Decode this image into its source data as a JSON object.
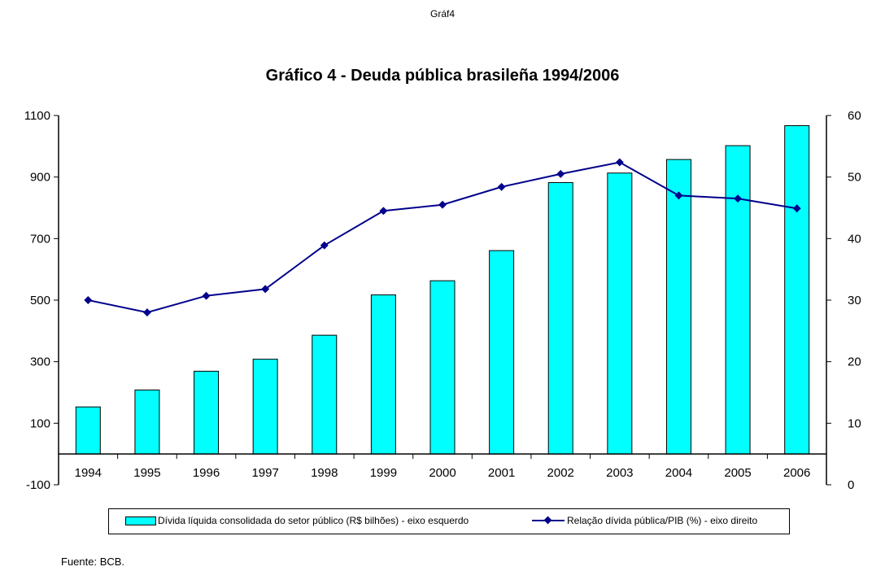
{
  "header": {
    "sheet_label": "Gráf4"
  },
  "chart_data": {
    "type": "bar",
    "title": "Gráfico 4 - Deuda pública brasileña 1994/2006",
    "categories": [
      "1994",
      "1995",
      "1996",
      "1997",
      "1998",
      "1999",
      "2000",
      "2001",
      "2002",
      "2003",
      "2004",
      "2005",
      "2006"
    ],
    "series": [
      {
        "name": "Dívida líquida consolidada do setor público (R$ bilhões) - eixo esquerdo",
        "type": "bar",
        "axis": "left",
        "color": "#00ffff",
        "values": [
          153,
          208,
          269,
          308,
          386,
          517,
          563,
          661,
          882,
          913,
          957,
          1002,
          1067
        ]
      },
      {
        "name": "Relação dívida pública/PIB (%) - eixo direito",
        "type": "line",
        "axis": "right",
        "color": "#00008b",
        "values": [
          30.0,
          28.0,
          30.7,
          31.8,
          38.9,
          44.5,
          45.5,
          48.4,
          50.5,
          52.4,
          47.0,
          46.5,
          44.9
        ]
      }
    ],
    "y_left": {
      "lim": [
        -100,
        1100
      ],
      "ticks": [
        "1100",
        "900",
        "700",
        "500",
        "300",
        "100",
        "-100"
      ]
    },
    "y_right": {
      "lim": [
        0,
        60
      ],
      "ticks": [
        "60",
        "50",
        "40",
        "30",
        "20",
        "10",
        "0"
      ]
    },
    "legend_position": "bottom",
    "grid": false
  },
  "footer": {
    "source": "Fuente: BCB."
  }
}
